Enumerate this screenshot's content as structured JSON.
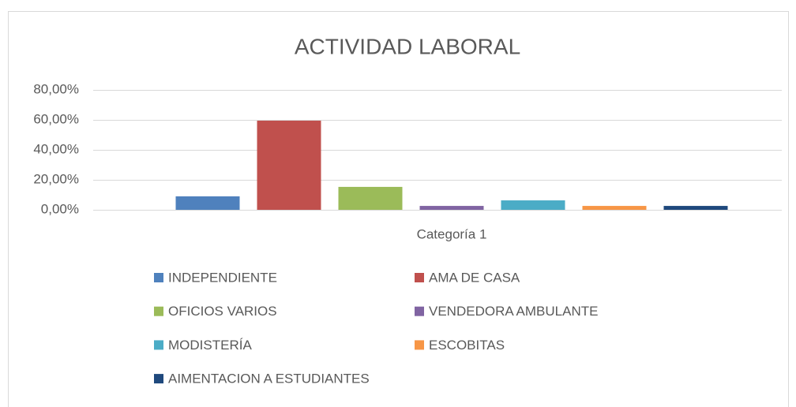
{
  "chart_data": {
    "type": "bar",
    "title": "ACTIVIDAD LABORAL",
    "categories": [
      "Categoría 1"
    ],
    "series": [
      {
        "name": "INDEPENDIENTE",
        "color": "#4f81bd",
        "values": [
          9
        ]
      },
      {
        "name": "AMA DE CASA",
        "color": "#c0504d",
        "values": [
          59.5
        ]
      },
      {
        "name": "OFICIOS VARIOS",
        "color": "#9bbb59",
        "values": [
          15.3
        ]
      },
      {
        "name": "VENDEDORA AMBULANTE",
        "color": "#8064a2",
        "values": [
          2.6
        ]
      },
      {
        "name": "MODISTERÍA",
        "color": "#4bacc6",
        "values": [
          6.3
        ]
      },
      {
        "name": "ESCOBITAS",
        "color": "#f79646",
        "values": [
          2.6
        ]
      },
      {
        "name": "AIMENTACION A ESTUDIANTES",
        "color": "#1f497d",
        "values": [
          2.6
        ]
      }
    ],
    "ylim": [
      0,
      80
    ],
    "yticks": [
      {
        "value": 0,
        "label": "0,00%"
      },
      {
        "value": 20,
        "label": "20,00%"
      },
      {
        "value": 40,
        "label": "40,00%"
      },
      {
        "value": 60,
        "label": "60,00%"
      },
      {
        "value": 80,
        "label": "80,00%"
      }
    ],
    "grid": true,
    "legend": "bottom"
  }
}
